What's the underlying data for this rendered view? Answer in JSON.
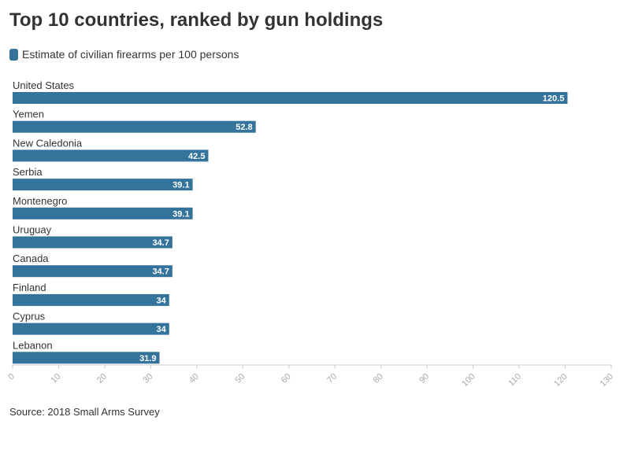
{
  "title": "Top 10 countries, ranked by gun holdings",
  "source": "Source: 2018 Small Arms Survey",
  "colors": {
    "bar": "#34749c",
    "text": "#333333",
    "axis": "#cccccc",
    "tick_label": "#aaaaaa",
    "value_label": "#ffffff"
  },
  "chart_data": {
    "type": "bar",
    "orientation": "horizontal",
    "title": "Top 10 countries, ranked by gun holdings",
    "categories": [
      "United States",
      "Yemen",
      "New Caledonia",
      "Serbia",
      "Montenegro",
      "Uruguay",
      "Canada",
      "Finland",
      "Cyprus",
      "Lebanon"
    ],
    "series": [
      {
        "name": "Estimate of civilian firearms per 100 persons",
        "values": [
          120.5,
          52.8,
          42.5,
          39.1,
          39.1,
          34.7,
          34.7,
          34,
          34,
          31.9
        ]
      }
    ],
    "value_labels": [
      "120.5",
      "52.8",
      "42.5",
      "39.1",
      "39.1",
      "34.7",
      "34.7",
      "34",
      "34",
      "31.9"
    ],
    "x_ticks": [
      "0",
      "10",
      "20",
      "30",
      "40",
      "50",
      "60",
      "70",
      "80",
      "90",
      "100",
      "110",
      "120",
      "130"
    ],
    "xlim": [
      0,
      130
    ],
    "xlabel": "",
    "ylabel": "",
    "grid": false,
    "legend": "top-left"
  }
}
